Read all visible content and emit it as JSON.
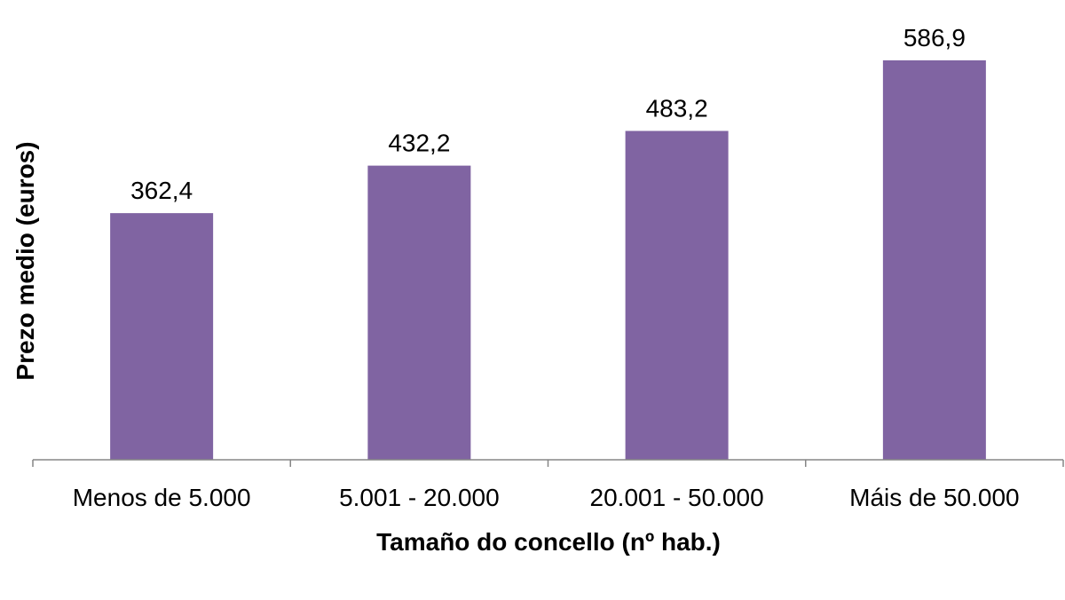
{
  "chart_data": {
    "type": "bar",
    "categories": [
      "Menos de 5.000",
      "5.001 - 20.000",
      "20.001 - 50.000",
      "Máis de 50.000"
    ],
    "values": [
      362.4,
      432.2,
      483.2,
      586.9
    ],
    "value_labels": [
      "362,4",
      "432,2",
      "483,2",
      "586,9"
    ],
    "xlabel": "Tamaño do concello (nº hab.)",
    "ylabel": "Prezo medio (euros)",
    "ylim": [
      0,
      586.9
    ],
    "grid": false,
    "legend": "none",
    "bar_color": "#8064A2"
  }
}
